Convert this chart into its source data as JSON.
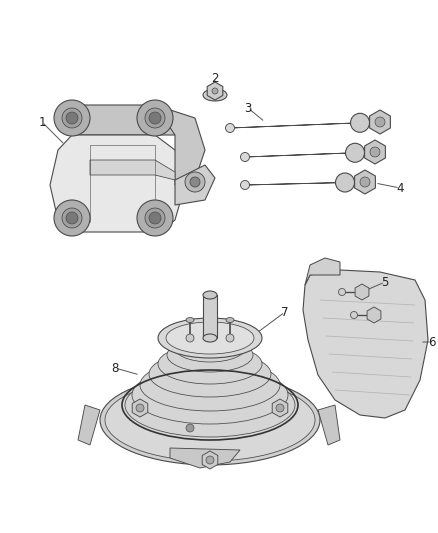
{
  "background_color": "#ffffff",
  "figure_width": 4.38,
  "figure_height": 5.33,
  "dpi": 100,
  "line_color": "#4a4a4a",
  "line_width": 0.8,
  "label_fontsize": 8.5,
  "parts": {
    "bracket_face": "#e8e8e8",
    "bracket_side": "#c8c8c8",
    "bracket_top": "#d8d8d8",
    "bushing_outer": "#b0b0b0",
    "bushing_inner": "#787878",
    "bolt_body": "#d0d0d0",
    "bolt_head": "#c0c0c0",
    "mount_base": "#d0d0d0",
    "mount_rubber": "#c8c8c8",
    "mount_top": "#d8d8d8",
    "shield_body": "#d8d8d8",
    "shield_stripe": "#b8b8b8"
  }
}
